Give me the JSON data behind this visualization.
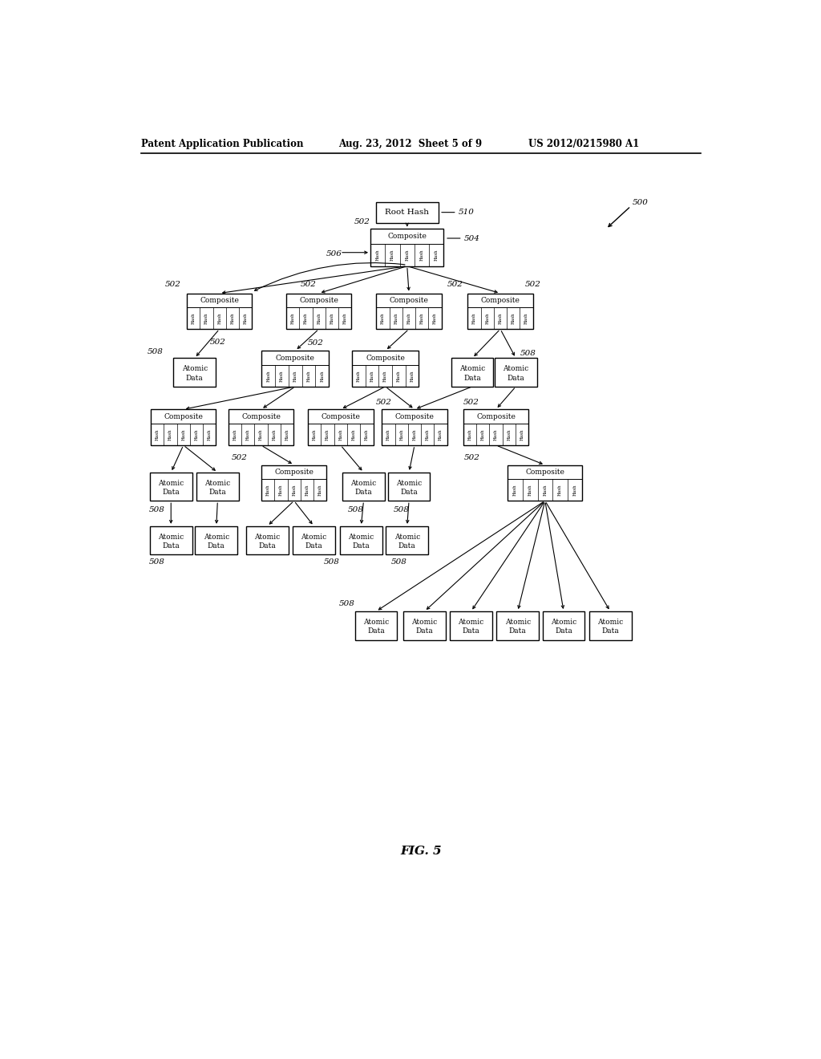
{
  "title_left": "Patent Application Publication",
  "title_center": "Aug. 23, 2012  Sheet 5 of 9",
  "title_right": "US 2012/0215980 A1",
  "fig_label": "FIG. 5",
  "bg_color": "#ffffff",
  "box_color": "#ffffff",
  "box_edge": "#000000",
  "text_color": "#000000"
}
